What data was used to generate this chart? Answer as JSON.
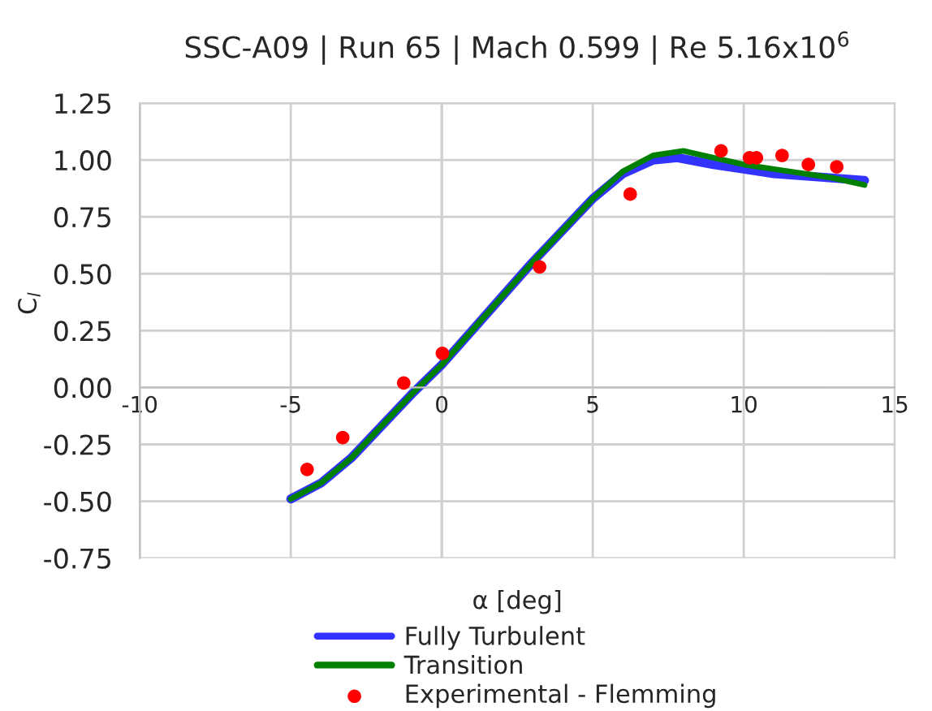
{
  "chart_data": {
    "type": "line",
    "title": "SSC-A09 | Run 65 | Mach 0.599 | Re 5.16x10$^{6}$",
    "xlabel": "α [deg]",
    "ylabel": "C$_{l}$",
    "xlim": [
      -10,
      15
    ],
    "xticks": [
      -10,
      -5,
      0,
      5,
      10,
      15
    ],
    "ylim": [
      -0.75,
      1.25
    ],
    "yticks": [
      {
        "value": -0.75,
        "label": "-0.75"
      },
      {
        "value": -0.5,
        "label": "-0.50"
      },
      {
        "value": -0.25,
        "label": "-0.25"
      },
      {
        "value": 0,
        "label": "0.00"
      },
      {
        "value": 0.25,
        "label": "0.25"
      },
      {
        "value": 0.5,
        "label": "0.50"
      },
      {
        "value": 0.75,
        "label": "0.75"
      },
      {
        "value": 1.0,
        "label": "1.00"
      },
      {
        "value": 1.25,
        "label": "1.25"
      }
    ],
    "grid": true,
    "legend": "bottom",
    "series": [
      {
        "name": "Fully Turbulent",
        "color": "#3333ff",
        "x": [
          -5,
          -4,
          -3,
          -2,
          -1,
          0,
          1,
          2,
          3,
          4,
          5,
          6,
          7,
          7.8,
          9,
          10,
          11,
          12,
          13,
          14
        ],
        "values": [
          -0.49,
          -0.42,
          -0.31,
          -0.17,
          -0.03,
          0.1,
          0.25,
          0.4,
          0.55,
          0.69,
          0.83,
          0.94,
          1.0,
          1.01,
          0.98,
          0.96,
          0.94,
          0.93,
          0.92,
          0.91
        ]
      },
      {
        "name": "Transition",
        "color": "#008000",
        "x": [
          -5,
          -4,
          -3,
          -2,
          -1,
          0,
          1,
          2,
          3,
          4,
          5,
          6,
          7,
          8,
          9,
          10,
          11,
          12,
          13,
          14
        ],
        "values": [
          -0.49,
          -0.42,
          -0.31,
          -0.17,
          -0.03,
          0.1,
          0.25,
          0.4,
          0.55,
          0.69,
          0.83,
          0.95,
          1.02,
          1.04,
          1.01,
          0.98,
          0.96,
          0.94,
          0.92,
          0.89
        ]
      },
      {
        "name": "Experimental - Flemming",
        "color": "#ff0000",
        "type": "scatter",
        "marker": "circle",
        "x": [
          -4.46,
          -3.28,
          -1.26,
          0.02,
          3.24,
          6.24,
          9.25,
          10.19,
          10.42,
          11.27,
          12.14,
          13.08
        ],
        "values": [
          -0.36,
          -0.22,
          0.02,
          0.15,
          0.53,
          0.85,
          1.04,
          1.01,
          1.01,
          1.02,
          0.98,
          0.97
        ]
      }
    ]
  }
}
